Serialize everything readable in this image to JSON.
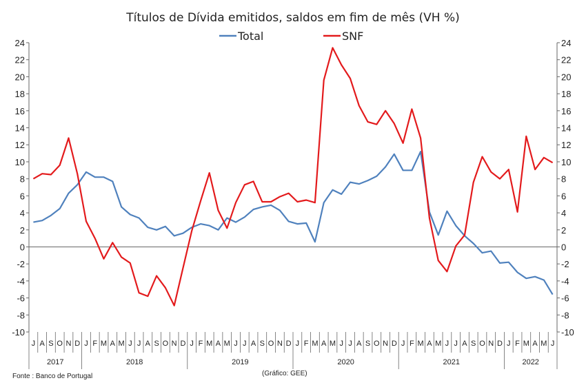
{
  "chart_data": {
    "type": "line",
    "title": "Títulos de Dívida emitidos, saldos em fim de mês  (VH %)",
    "xlabel": "",
    "ylabel": "",
    "ylim": [
      -10,
      24
    ],
    "yticks": [
      -10,
      -8,
      -6,
      -4,
      -2,
      0,
      2,
      4,
      6,
      8,
      10,
      12,
      14,
      16,
      18,
      20,
      22,
      24
    ],
    "grid": false,
    "legend": "top-center",
    "month_labels": [
      "J",
      "A",
      "S",
      "O",
      "N",
      "D",
      "J",
      "F",
      "M",
      "A",
      "M",
      "J",
      "J",
      "A",
      "S",
      "O",
      "N",
      "D",
      "J",
      "F",
      "M",
      "A",
      "M",
      "J",
      "J",
      "A",
      "S",
      "O",
      "N",
      "D",
      "J",
      "F",
      "M",
      "A",
      "M",
      "J",
      "J",
      "A",
      "S",
      "O",
      "N",
      "D",
      "J",
      "F",
      "M",
      "A",
      "M",
      "J",
      "J",
      "A",
      "S",
      "O",
      "N",
      "D",
      "J",
      "F",
      "M",
      "A",
      "M",
      "J"
    ],
    "years": [
      {
        "label": "2017",
        "months": 6
      },
      {
        "label": "2018",
        "months": 12
      },
      {
        "label": "2019",
        "months": 12
      },
      {
        "label": "2020",
        "months": 12
      },
      {
        "label": "2021",
        "months": 12
      },
      {
        "label": "2022",
        "months": 6
      }
    ],
    "series": [
      {
        "name": "Total",
        "color": "#4f81bd",
        "values": [
          2.9,
          3.1,
          3.7,
          4.5,
          6.3,
          7.3,
          8.8,
          8.2,
          8.2,
          7.7,
          4.7,
          3.8,
          3.4,
          2.3,
          2.0,
          2.4,
          1.3,
          1.6,
          2.3,
          2.7,
          2.5,
          2.0,
          3.4,
          2.9,
          3.5,
          4.4,
          4.7,
          4.9,
          4.3,
          3.0,
          2.7,
          2.8,
          0.6,
          5.2,
          6.7,
          6.2,
          7.6,
          7.4,
          7.8,
          8.3,
          9.4,
          10.9,
          9.0,
          9.0,
          11.2,
          4.1,
          1.4,
          4.2,
          2.5,
          1.3,
          0.4,
          -0.7,
          -0.5,
          -1.9,
          -1.8,
          -3.0,
          -3.7,
          -3.5,
          -3.9,
          -5.6
        ]
      },
      {
        "name": "SNF",
        "color": "#e31a1c",
        "values": [
          8.0,
          8.6,
          8.5,
          9.6,
          12.8,
          8.6,
          3.0,
          1.0,
          -1.4,
          0.5,
          -1.2,
          -1.9,
          -5.4,
          -5.8,
          -3.4,
          -4.8,
          -6.9,
          -2.5,
          1.9,
          5.4,
          8.7,
          4.3,
          2.2,
          5.2,
          7.3,
          7.7,
          5.3,
          5.3,
          5.9,
          6.3,
          5.3,
          5.5,
          5.2,
          19.6,
          23.4,
          21.4,
          19.8,
          16.6,
          14.7,
          14.4,
          16.0,
          14.5,
          12.2,
          16.2,
          12.8,
          3.4,
          -1.6,
          -2.9,
          0.1,
          1.4,
          7.6,
          10.6,
          8.8,
          8.0,
          9.1,
          4.1,
          13.0,
          9.1,
          10.5,
          9.9
        ]
      }
    ],
    "notes": {
      "source": "Fonte : Banco de Portugal",
      "credit": "(Gráfico: GEE)"
    }
  }
}
